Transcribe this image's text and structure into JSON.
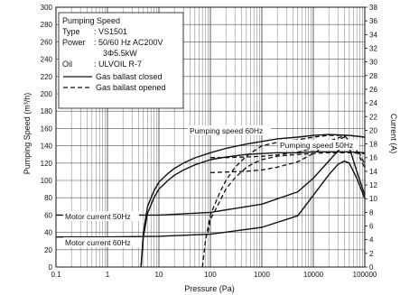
{
  "chart_data": {
    "type": "line",
    "x_scale": "log",
    "xlabel": "Pressure (Pa)",
    "ylabel": "Pumping Speed (m³/h)",
    "y2label": "Current (A)",
    "xlim": [
      0.1,
      100000
    ],
    "ylim": [
      0,
      300
    ],
    "y2lim": [
      0,
      38
    ],
    "x_ticks": [
      {
        "v": 0.1,
        "label": "0.1"
      },
      {
        "v": 1,
        "label": "1"
      },
      {
        "v": 10,
        "label": "10"
      },
      {
        "v": 100,
        "label": "100"
      },
      {
        "v": 1000,
        "label": "1000"
      },
      {
        "v": 10000,
        "label": "10000"
      },
      {
        "v": 100000,
        "label": "100000"
      }
    ],
    "y_ticks": [
      "0",
      "20",
      "40",
      "60",
      "80",
      "100",
      "120",
      "140",
      "160",
      "180",
      "200",
      "220",
      "240",
      "260",
      "280",
      "300"
    ],
    "y2_ticks": [
      "0",
      "2",
      "4",
      "6",
      "8",
      "10",
      "12",
      "14",
      "16",
      "18",
      "20",
      "22",
      "24",
      "26",
      "28",
      "30",
      "32",
      "34",
      "36",
      "38"
    ],
    "legend": {
      "title": "Pumping Speed",
      "lines": [
        {
          "key": "Type",
          "value": ": VS1501"
        },
        {
          "key": "Power",
          "value": ": 50/60 Hz AC200V"
        },
        {
          "key": "",
          "value": "3Φ5.5kW"
        },
        {
          "key": "Oil",
          "value": ": ULVOIL R-7"
        }
      ],
      "entries": [
        {
          "label": "Gas ballast closed",
          "style": "solid"
        },
        {
          "label": "Gas ballast opened",
          "style": "dashed"
        }
      ]
    },
    "annotations": [
      {
        "text": "Pumping speed 60Hz"
      },
      {
        "text": "Pumping speed 50Hz"
      },
      {
        "text": "Motor current 50Hz"
      },
      {
        "text": "Motor current 60Hz"
      }
    ],
    "series": [
      {
        "id": "ps60_closed",
        "axis": "left",
        "style": "solid",
        "x": [
          4.5,
          5,
          6,
          8,
          10,
          15,
          20,
          30,
          50,
          100,
          200,
          500,
          1000,
          2000,
          5000,
          10000,
          20000,
          50000,
          100000
        ],
        "y": [
          0,
          40,
          70,
          88,
          98,
          108,
          114,
          120,
          126,
          132,
          137,
          142,
          145,
          148,
          150,
          152,
          153,
          152,
          150
        ]
      },
      {
        "id": "ps50_closed",
        "axis": "left",
        "style": "solid",
        "x": [
          4.5,
          5,
          6,
          8,
          10,
          15,
          20,
          30,
          50,
          100,
          200,
          500,
          1000,
          2000,
          5000,
          10000,
          20000,
          50000,
          100000
        ],
        "y": [
          0,
          35,
          62,
          80,
          90,
          100,
          106,
          112,
          118,
          124,
          127,
          130,
          131,
          132,
          132,
          133,
          133,
          133,
          132
        ]
      },
      {
        "id": "ps60_open",
        "axis": "left",
        "style": "dashed",
        "x": [
          70,
          80,
          100,
          150,
          200,
          300,
          500,
          700,
          1000,
          2000,
          5000,
          10000,
          20000,
          50000,
          100000
        ],
        "y": [
          0,
          30,
          60,
          85,
          100,
          115,
          128,
          134,
          140,
          144,
          147,
          150,
          152,
          152,
          150
        ]
      },
      {
        "id": "ps50_open",
        "axis": "left",
        "style": "dashed",
        "x": [
          90,
          100,
          150,
          200,
          300,
          500,
          700,
          1000,
          2000,
          5000,
          10000,
          20000,
          50000,
          100000
        ],
        "y": [
          40,
          55,
          75,
          90,
          103,
          115,
          120,
          124,
          128,
          130,
          131,
          132,
          132,
          131
        ]
      },
      {
        "id": "mc50_closed",
        "axis": "right",
        "style": "solid",
        "x": [
          0.1,
          1,
          10,
          100,
          1000,
          5000,
          10000,
          20000,
          30000,
          40000,
          50000,
          70000,
          100000
        ],
        "y": [
          7.6,
          7.6,
          7.6,
          8.0,
          9.2,
          11.0,
          13.0,
          15.5,
          17.0,
          17.8,
          17.5,
          14.0,
          10.5
        ]
      },
      {
        "id": "mc60_closed",
        "axis": "right",
        "style": "solid",
        "x": [
          0.1,
          1,
          10,
          100,
          1000,
          5000,
          10000,
          20000,
          30000,
          40000,
          50000,
          70000,
          100000
        ],
        "y": [
          4.4,
          4.4,
          4.5,
          4.8,
          5.8,
          7.5,
          10.5,
          13.5,
          15.0,
          15.5,
          15.2,
          13.0,
          10.0
        ]
      },
      {
        "id": "mc50_open",
        "axis": "right",
        "style": "dashed",
        "x": [
          100,
          200,
          500,
          1000,
          2000,
          5000,
          10000,
          20000,
          40000,
          70000,
          100000
        ],
        "y": [
          16.0,
          16.0,
          16.1,
          16.2,
          16.4,
          16.8,
          17.4,
          18.4,
          19.2,
          17.5,
          15.0
        ]
      },
      {
        "id": "mc60_open",
        "axis": "right",
        "style": "dashed",
        "x": [
          100,
          200,
          500,
          1000,
          2000,
          5000,
          10000,
          20000,
          40000,
          70000,
          100000
        ],
        "y": [
          13.8,
          13.9,
          14.0,
          14.2,
          14.6,
          15.4,
          16.6,
          18.0,
          19.0,
          17.0,
          14.5
        ]
      }
    ]
  }
}
